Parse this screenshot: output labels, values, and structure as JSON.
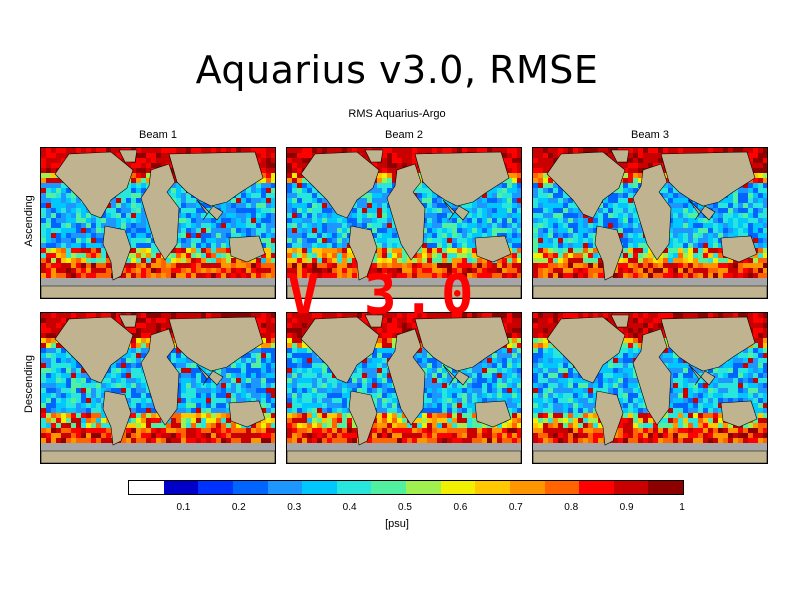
{
  "slide": {
    "title": "Aquarius v3.0, RMSE"
  },
  "figure": {
    "title": "RMS Aquarius-Argo",
    "columns": [
      "Beam 1",
      "Beam 2",
      "Beam 3"
    ],
    "rows": [
      "Ascending",
      "Descending"
    ],
    "overlay_text": "V 3.0"
  },
  "colorbar": {
    "ticks": [
      "0.1",
      "0.2",
      "0.3",
      "0.4",
      "0.5",
      "0.6",
      "0.7",
      "0.8",
      "0.9",
      "1"
    ],
    "unit": "[psu]",
    "colors": [
      "#ffffff",
      "#0000c8",
      "#0032ff",
      "#0064ff",
      "#1e96ff",
      "#00c8ff",
      "#28e6dc",
      "#50f0a0",
      "#a0f050",
      "#f0f000",
      "#ffc800",
      "#ff9600",
      "#ff6400",
      "#ff0000",
      "#c80000",
      "#8c0000"
    ]
  },
  "colors": {
    "land": "#bfb48f",
    "missing": "#a6a6a6",
    "overlay": "#ff0000"
  }
}
